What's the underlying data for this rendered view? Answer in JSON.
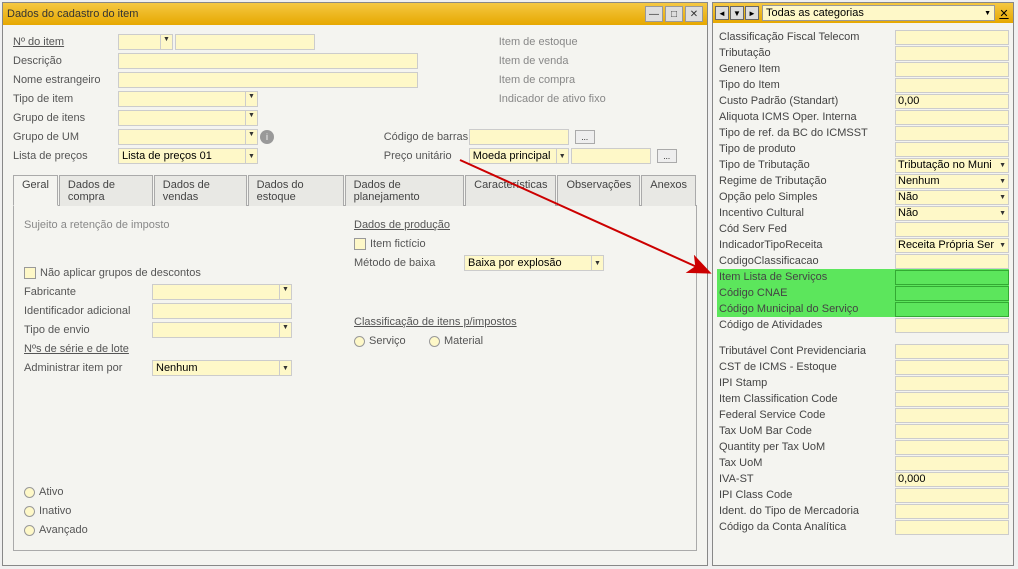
{
  "window": {
    "title": "Dados do cadastro do item"
  },
  "form": {
    "no_item": "Nº do item",
    "descricao": "Descrição",
    "nome_estrangeiro": "Nome estrangeiro",
    "tipo_item": "Tipo de item",
    "grupo_itens": "Grupo de itens",
    "grupo_um": "Grupo de UM",
    "lista_precos": "Lista de preços",
    "lista_precos_val": "Lista de preços 01",
    "item_estoque": "Item de estoque",
    "item_venda": "Item de venda",
    "item_compra": "Item de compra",
    "indicador_ativo": "Indicador de ativo fixo",
    "codigo_barras": "Código de barras",
    "preco_unitario": "Preço unitário",
    "moeda_principal": "Moeda principal"
  },
  "tabs": {
    "geral": "Geral",
    "dados_compra": "Dados de compra",
    "dados_vendas": "Dados de vendas",
    "dados_estoque": "Dados do estoque",
    "dados_planej": "Dados de planejamento",
    "caracteristicas": "Características",
    "observacoes": "Observações",
    "anexos": "Anexos"
  },
  "geral": {
    "sujeito_retencao": "Sujeito a retenção de imposto",
    "nao_aplicar": "Não aplicar grupos de descontos",
    "fabricante": "Fabricante",
    "ident_adicional": "Identificador adicional",
    "tipo_envio": "Tipo de envio",
    "nos_serie": "Nºs de série e de lote",
    "admin_item": "Administrar item por",
    "admin_item_val": "Nenhum",
    "dados_producao": "Dados de produção",
    "item_ficticio": "Item fictício",
    "metodo_baixa": "Método de baixa",
    "metodo_baixa_val": "Baixa por explosão",
    "class_itens": "Classificação de itens p/impostos",
    "servico": "Serviço",
    "material": "Material",
    "ativo": "Ativo",
    "inativo": "Inativo",
    "avancado": "Avançado"
  },
  "side": {
    "categoria": "Todas as categorias",
    "rows": [
      {
        "label": "Classificação Fiscal Telecom",
        "val": "",
        "dd": false
      },
      {
        "label": "Tributação",
        "val": "",
        "dd": false
      },
      {
        "label": "Genero Item",
        "val": "",
        "dd": false
      },
      {
        "label": "Tipo do Item",
        "val": "",
        "dd": false
      },
      {
        "label": "Custo Padrão (Standart)",
        "val": "0,00",
        "dd": false
      },
      {
        "label": "Aliquota ICMS Oper. Interna",
        "val": "",
        "dd": false
      },
      {
        "label": "Tipo de ref. da BC do ICMSST",
        "val": "",
        "dd": false
      },
      {
        "label": "Tipo de produto",
        "val": "",
        "dd": false
      },
      {
        "label": "Tipo de Tributação",
        "val": "Tributação no Muni",
        "dd": true
      },
      {
        "label": "Regime de Tributação",
        "val": "Nenhum",
        "dd": true
      },
      {
        "label": "Opção pelo Simples",
        "val": "Não",
        "dd": true
      },
      {
        "label": "Incentivo Cultural",
        "val": "Não",
        "dd": true
      },
      {
        "label": "Cód Serv Fed",
        "val": "",
        "dd": false
      },
      {
        "label": "IndicadorTipoReceita",
        "val": "Receita Própria  Ser",
        "dd": true
      },
      {
        "label": "CodigoClassificacao",
        "val": "",
        "dd": false
      },
      {
        "label": "Item Lista de Serviços",
        "val": "",
        "dd": false,
        "hl": true
      },
      {
        "label": "Código CNAE",
        "val": "",
        "dd": false,
        "hl": true
      },
      {
        "label": "Código Municipal do Serviço",
        "val": "",
        "dd": false,
        "hl": true
      },
      {
        "label": "Código de Atividades",
        "val": "",
        "dd": false
      }
    ],
    "rows2": [
      {
        "label": "Tributável Cont Previdenciaria",
        "val": "",
        "dd": false
      },
      {
        "label": "CST  de ICMS - Estoque",
        "val": "",
        "dd": false
      },
      {
        "label": "IPI Stamp",
        "val": "",
        "dd": false
      },
      {
        "label": "Item Classification Code",
        "val": "",
        "dd": false
      },
      {
        "label": "Federal Service Code",
        "val": "",
        "dd": false
      },
      {
        "label": "Tax UoM Bar Code",
        "val": "",
        "dd": false
      },
      {
        "label": "Quantity per Tax UoM",
        "val": "",
        "dd": false
      },
      {
        "label": "Tax UoM",
        "val": "",
        "dd": false
      },
      {
        "label": "IVA-ST",
        "val": "0,000",
        "dd": false
      },
      {
        "label": "IPI Class Code",
        "val": "",
        "dd": false
      },
      {
        "label": "Ident. do Tipo de Mercadoria",
        "val": "",
        "dd": false
      },
      {
        "label": "Código da Conta Analítica",
        "val": "",
        "dd": false
      }
    ]
  },
  "colors": {
    "field_bg": "#fef8c8",
    "highlight": "#5ce65c",
    "titlebar_grad_start": "#f5c842",
    "titlebar_grad_end": "#e6a800",
    "arrow": "#cc0000"
  }
}
